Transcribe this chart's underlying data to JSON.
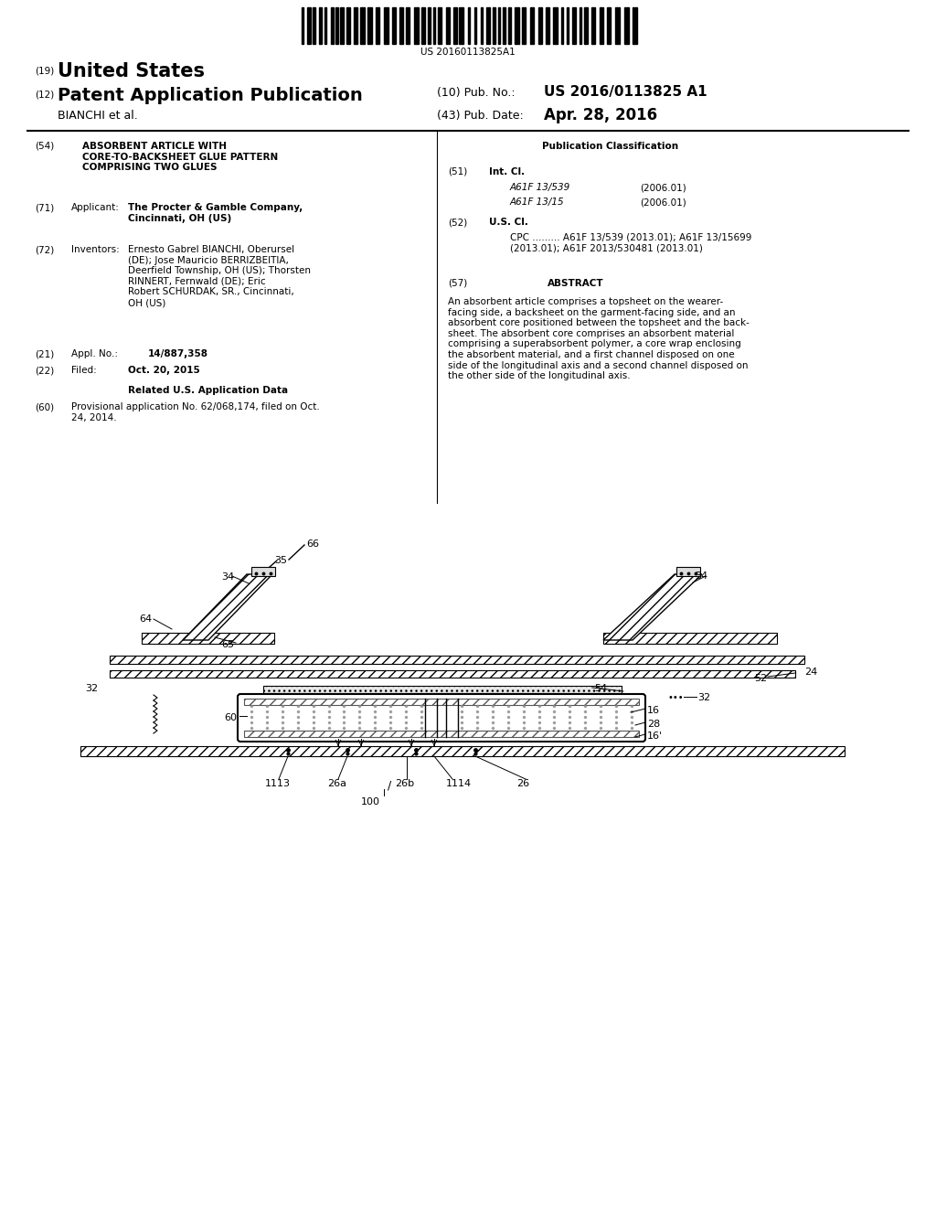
{
  "page_width": 10.24,
  "page_height": 13.2,
  "bg_color": "#ffffff",
  "barcode_text": "US 20160113825A1",
  "title_19": "(19)",
  "title_19_text": "United States",
  "title_12": "(12)",
  "title_12_text": "Patent Application Publication",
  "pub_no_label": "(10) Pub. No.:",
  "pub_no_value": "US 2016/0113825 A1",
  "inventor_label": "BIANCHI et al.",
  "pub_date_label": "(43) Pub. Date:",
  "pub_date_value": "Apr. 28, 2016",
  "section54_num": "(54)",
  "section54_title": "ABSORBENT ARTICLE WITH\nCORE-TO-BACKSHEET GLUE PATTERN\nCOMPRISING TWO GLUES",
  "section71_num": "(71)",
  "section71_label": "Applicant:",
  "section71_text": "The Procter & Gamble Company,\nCincinnati, OH (US)",
  "section72_num": "(72)",
  "section72_label": "Inventors:",
  "section72_text": "Ernesto Gabrel BIANCHI, Oberursel\n(DE); Jose Mauricio BERRIZBEITIA,\nDeerfield Township, OH (US); Thorsten\nRINNERT, Fernwald (DE); Eric\nRobert SCHURDAK, SR., Cincinnati,\nOH (US)",
  "section21_num": "(21)",
  "section21_label": "Appl. No.:",
  "section21_value": "14/887,358",
  "section22_num": "(22)",
  "section22_label": "Filed:",
  "section22_value": "Oct. 20, 2015",
  "related_title": "Related U.S. Application Data",
  "section60_num": "(60)",
  "section60_text": "Provisional application No. 62/068,174, filed on Oct.\n24, 2014.",
  "pub_class_title": "Publication Classification",
  "section51_num": "(51)",
  "section51_label": "Int. Cl.",
  "int_cl_entries": [
    {
      "code": "A61F 13/539",
      "date": "(2006.01)"
    },
    {
      "code": "A61F 13/15",
      "date": "(2006.01)"
    }
  ],
  "section52_num": "(52)",
  "section52_label": "U.S. Cl.",
  "cpc_text": "CPC ......... A61F 13/539 (2013.01); A61F 13/15699\n(2013.01); A61F 2013/530481 (2013.01)",
  "section57_num": "(57)",
  "section57_label": "ABSTRACT",
  "abstract_text": "An absorbent article comprises a topsheet on the wearer-\nfacing side, a backsheet on the garment-facing side, and an\nabsorbent core positioned between the topsheet and the back-\nsheet. The absorbent core comprises an absorbent material\ncomprising a superabsorbent polymer, a core wrap enclosing\nthe absorbent material, and a first channel disposed on one\nside of the longitudinal axis and a second channel disposed on\nthe other side of the longitudinal axis."
}
